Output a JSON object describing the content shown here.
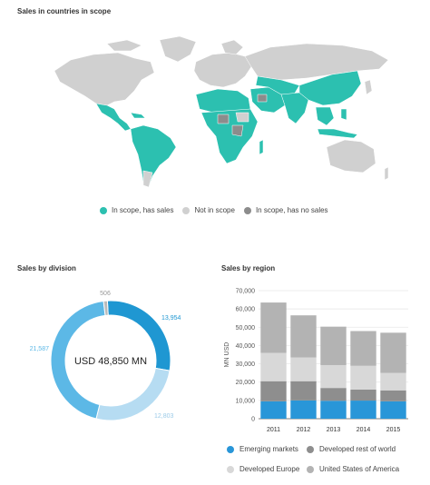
{
  "map": {
    "title": "Sales in countries in scope",
    "legend": [
      {
        "label": "In scope, has sales",
        "color": "#2cc0b0"
      },
      {
        "label": "Not in scope",
        "color": "#d0d0d0"
      },
      {
        "label": "In scope, has no sales",
        "color": "#8c8c8c"
      }
    ]
  },
  "division": {
    "title": "Sales by division",
    "center_label": "USD 48,850 MN"
  },
  "region": {
    "title": "Sales by region"
  },
  "chart_data": [
    {
      "type": "pie",
      "title": "Sales by division",
      "center_label": "USD 48,850 MN",
      "values": [
        13954,
        12803,
        21587,
        506
      ],
      "value_labels": [
        "13,954",
        "12,803",
        "21,587",
        "506"
      ],
      "colors": [
        "#1f97d2",
        "#b6dcf2",
        "#5cb8e6",
        "#bbbbbb"
      ]
    },
    {
      "type": "bar",
      "stacked": true,
      "title": "Sales by region",
      "ylabel": "MN USD",
      "categories": [
        "2011",
        "2012",
        "2013",
        "2014",
        "2015"
      ],
      "ylim": [
        0,
        70000
      ],
      "yticks": [
        0,
        10000,
        20000,
        30000,
        40000,
        50000,
        60000,
        70000
      ],
      "ytick_labels": [
        "0",
        "10,000",
        "20,000",
        "30,000",
        "40,000",
        "50,000",
        "60,000",
        "70,000"
      ],
      "grid": true,
      "legend_position": "bottom",
      "series": [
        {
          "name": "Emerging markets",
          "color": "#2996d8",
          "values": [
            9500,
            10000,
            9800,
            9900,
            9500
          ]
        },
        {
          "name": "Developed rest of world",
          "color": "#8e8e8e",
          "values": [
            11000,
            10500,
            7000,
            6000,
            6000
          ]
        },
        {
          "name": "Developed Europe",
          "color": "#d8d8d8",
          "values": [
            15500,
            13000,
            12500,
            13000,
            9500
          ]
        },
        {
          "name": "United States of America",
          "color": "#b3b3b3",
          "values": [
            27500,
            23000,
            21000,
            19000,
            22000
          ]
        }
      ]
    }
  ]
}
